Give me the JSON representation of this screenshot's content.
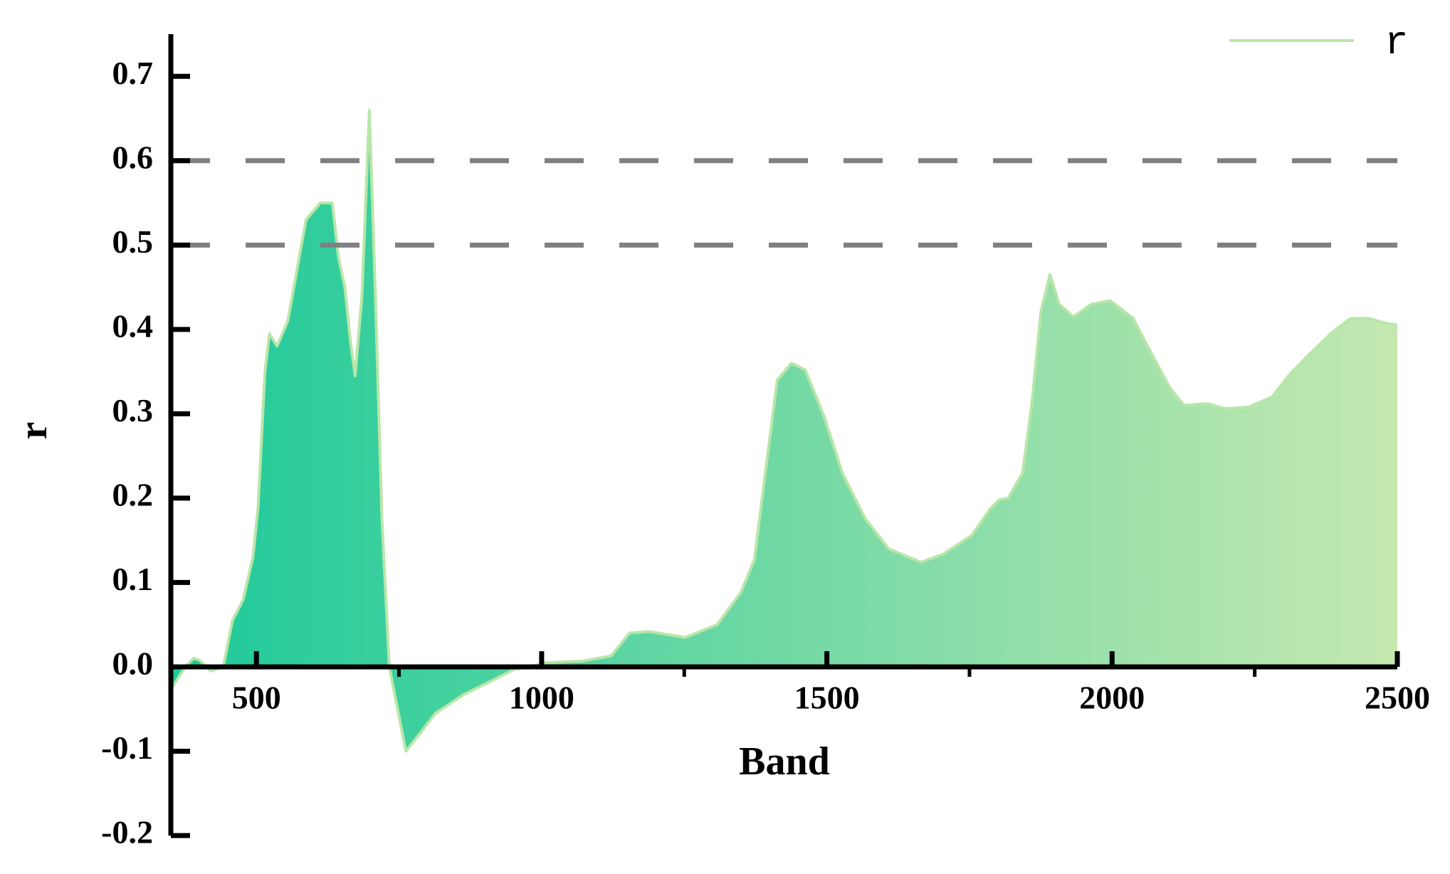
{
  "chart_data": {
    "type": "area",
    "xlabel": "Band",
    "ylabel": "r",
    "x": [
      350,
      375,
      390,
      400,
      420,
      442,
      458,
      477,
      494,
      503,
      515,
      523,
      536,
      555,
      571,
      587,
      612,
      633,
      644,
      655,
      665,
      673,
      685,
      698,
      709,
      720,
      733,
      746,
      762,
      782,
      814,
      863,
      911,
      952,
      976,
      1009,
      1073,
      1122,
      1154,
      1187,
      1252,
      1308,
      1349,
      1373,
      1394,
      1413,
      1438,
      1462,
      1495,
      1527,
      1567,
      1608,
      1665,
      1705,
      1754,
      1786,
      1802,
      1818,
      1843,
      1859,
      1875,
      1891,
      1907,
      1932,
      1964,
      1997,
      2037,
      2070,
      2102,
      2126,
      2167,
      2199,
      2240,
      2280,
      2312,
      2345,
      2385,
      2418,
      2450,
      2482,
      2500
    ],
    "series": [
      {
        "name": "r",
        "color": "#b8e6a8",
        "fill_gradient": [
          "#1dc99a",
          "#c5e8b0"
        ],
        "values": [
          -0.027,
          0.0,
          0.01,
          0.008,
          -0.005,
          0.0,
          0.055,
          0.08,
          0.13,
          0.19,
          0.35,
          0.395,
          0.38,
          0.41,
          0.47,
          0.53,
          0.55,
          0.55,
          0.485,
          0.45,
          0.385,
          0.345,
          0.44,
          0.66,
          0.43,
          0.175,
          0.0,
          -0.045,
          -0.1,
          -0.083,
          -0.055,
          -0.033,
          -0.017,
          -0.003,
          0.0,
          0.005,
          0.007,
          0.013,
          0.04,
          0.042,
          0.035,
          0.05,
          0.088,
          0.127,
          0.24,
          0.34,
          0.36,
          0.352,
          0.297,
          0.23,
          0.176,
          0.14,
          0.124,
          0.134,
          0.156,
          0.187,
          0.198,
          0.2,
          0.23,
          0.31,
          0.42,
          0.465,
          0.43,
          0.415,
          0.43,
          0.434,
          0.413,
          0.37,
          0.33,
          0.31,
          0.312,
          0.306,
          0.308,
          0.32,
          0.347,
          0.37,
          0.396,
          0.413,
          0.413,
          0.407,
          0.405
        ]
      }
    ],
    "xlim": [
      350,
      2500
    ],
    "ylim": [
      -0.2,
      0.75
    ],
    "xticks": [
      500,
      1000,
      1500,
      2000,
      2500
    ],
    "xminorticks": [
      750,
      1250,
      1750,
      2250
    ],
    "yticks": [
      -0.2,
      -0.1,
      {
        "value": 0,
        "label": "0.0"
      },
      0.1,
      0.2,
      0.3,
      0.4,
      0.5,
      0.6,
      0.7
    ],
    "hlines": [
      0.5,
      0.6
    ],
    "hline_color": "#808080",
    "legend": "upper right"
  }
}
